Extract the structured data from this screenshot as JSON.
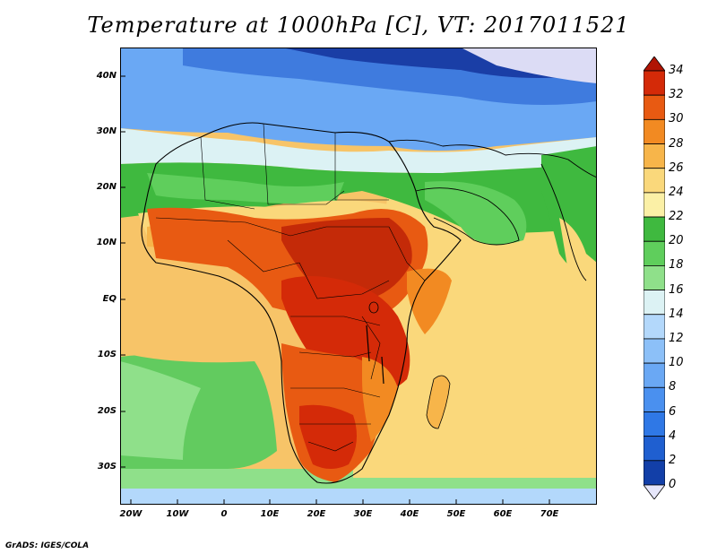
{
  "title": "Temperature at 1000hPa [C], VT: 2017011521",
  "credit": "GrADS: IGES/COLA",
  "lat_labels": [
    "40N",
    "30N",
    "20N",
    "10N",
    "EQ",
    "10S",
    "20S",
    "30S"
  ],
  "lon_labels": [
    "20W",
    "10W",
    "0",
    "10E",
    "20E",
    "30E",
    "40E",
    "50E",
    "60E",
    "70E"
  ],
  "colorbar": {
    "levels": [
      "0",
      "2",
      "4",
      "6",
      "8",
      "10",
      "12",
      "14",
      "16",
      "18",
      "20",
      "22",
      "24",
      "26",
      "28",
      "30",
      "32",
      "34"
    ],
    "colors": [
      "#0b1f6e",
      "#123fa8",
      "#1f5fd0",
      "#2f78e6",
      "#4a90ef",
      "#6aa8f4",
      "#8cc0f8",
      "#b3d8fb",
      "#dcf2f4",
      "#8fe08a",
      "#5fce5c",
      "#3fb93f",
      "#fbf0a6",
      "#fad87b",
      "#f7b54a",
      "#f28a22",
      "#e85a12",
      "#d42a08",
      "#b01404"
    ]
  },
  "regions": {
    "ocean-atlantic-north": "#f7c468",
    "ocean-atlantic-south": "#62cb5f",
    "ocean-indian": "#fad87b",
    "mediterranean": "#6fa9ef",
    "europe": "#3f7bde",
    "russia": "#1a3ea6",
    "north-africa": "#8cc0f8",
    "sahara-south": "#3fb93f",
    "sahel": "#e85a12",
    "central-africa": "#c42a08",
    "arabia": "#3fb93f",
    "india": "#fad87b",
    "madagascar": "#f7b54a",
    "southern-ocean": "#8fe08a"
  }
}
